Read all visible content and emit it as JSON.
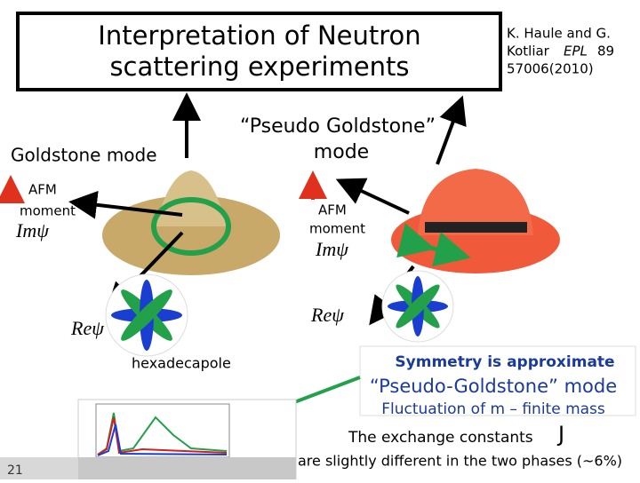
{
  "title": {
    "lines": [
      "Interpretation of Neutron",
      "scattering experiments"
    ]
  },
  "reference": {
    "lines": [
      "K. Haule and G.",
      "Kotliar",
      "EPL",
      "89",
      "57006(2010)"
    ]
  },
  "left_panel": {
    "heading": "Goldstone mode",
    "moment": [
      "AFM",
      "moment"
    ],
    "im_label": "Imψ",
    "re_label": "Reψ",
    "caption": "hexadecapole"
  },
  "right_panel": {
    "heading": [
      "“Pseudo Goldstone”",
      "mode"
    ],
    "moment": [
      "AFM",
      "moment"
    ],
    "im_label": "Imψ",
    "re_label": "Reψ"
  },
  "callout": {
    "lines": [
      "Symmetry is approximate",
      "“Pseudo-Goldstone” mode",
      "Fluctuation of m – finite mass"
    ]
  },
  "footer": {
    "exchange": "The exchange constants",
    "symbol": "J",
    "difference": "are slightly different in the two phases (~6%)"
  },
  "slide_number": "21"
}
